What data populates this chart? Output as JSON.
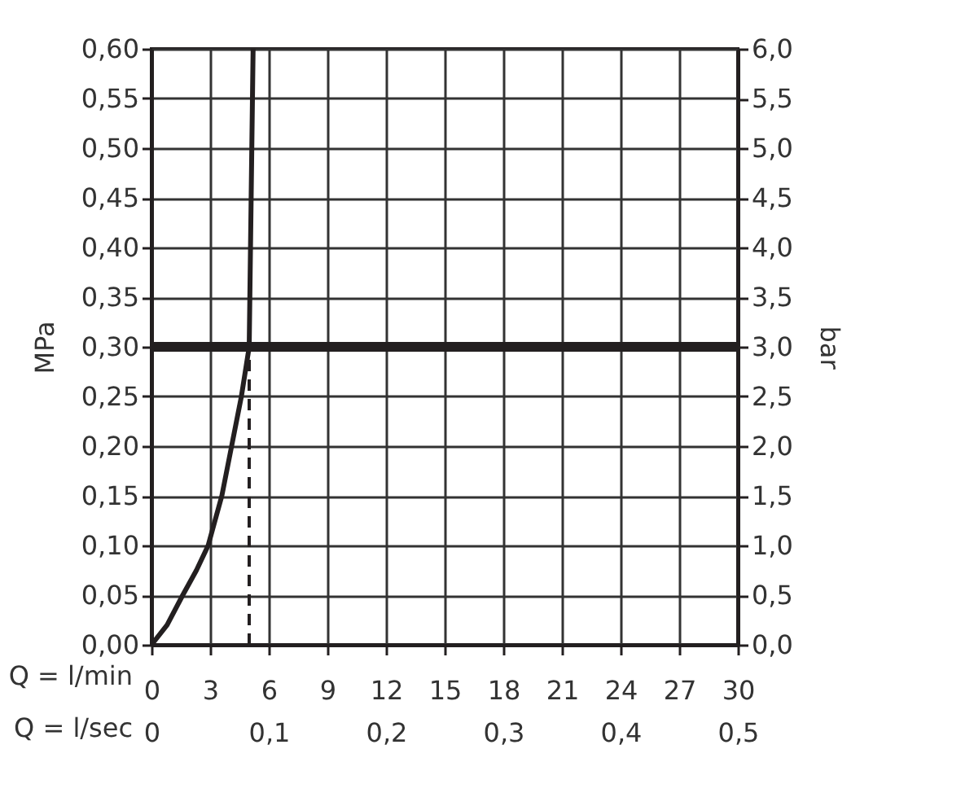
{
  "chart_data": {
    "type": "line",
    "xlabel": "Q = l/min",
    "x2label": "Q = l/sec",
    "ylabel": "MPa",
    "y2label": "bar",
    "xlim": [
      0,
      30
    ],
    "xticks": [
      0,
      3,
      6,
      9,
      12,
      15,
      18,
      21,
      24,
      27,
      30
    ],
    "x2lim": [
      0,
      0.5
    ],
    "x2ticks": [
      {
        "value": 0,
        "label": "0"
      },
      {
        "value": 0.1,
        "label": "0,1"
      },
      {
        "value": 0.2,
        "label": "0,2"
      },
      {
        "value": 0.3,
        "label": "0,3"
      },
      {
        "value": 0.4,
        "label": "0,4"
      },
      {
        "value": 0.5,
        "label": "0,5"
      }
    ],
    "ylim": [
      0,
      0.6
    ],
    "yticks": [
      {
        "value": 0,
        "label": "0,00"
      },
      {
        "value": 0.05,
        "label": "0,05"
      },
      {
        "value": 0.1,
        "label": "0,10"
      },
      {
        "value": 0.15,
        "label": "0,15"
      },
      {
        "value": 0.2,
        "label": "0,20"
      },
      {
        "value": 0.25,
        "label": "0,25"
      },
      {
        "value": 0.3,
        "label": "0,30"
      },
      {
        "value": 0.35,
        "label": "0,35"
      },
      {
        "value": 0.4,
        "label": "0,40"
      },
      {
        "value": 0.45,
        "label": "0,45"
      },
      {
        "value": 0.5,
        "label": "0,50"
      },
      {
        "value": 0.55,
        "label": "0,55"
      },
      {
        "value": 0.6,
        "label": "0,60"
      }
    ],
    "y2lim": [
      0,
      6
    ],
    "y2ticks": [
      {
        "value": 0,
        "label": "0,0"
      },
      {
        "value": 0.5,
        "label": "0,5"
      },
      {
        "value": 1,
        "label": "1,0"
      },
      {
        "value": 1.5,
        "label": "1,5"
      },
      {
        "value": 2,
        "label": "2,0"
      },
      {
        "value": 2.5,
        "label": "2,5"
      },
      {
        "value": 3,
        "label": "3,0"
      },
      {
        "value": 3.5,
        "label": "3,5"
      },
      {
        "value": 4,
        "label": "4,0"
      },
      {
        "value": 4.5,
        "label": "4,5"
      },
      {
        "value": 5,
        "label": "5,0"
      },
      {
        "value": 5.5,
        "label": "5,5"
      },
      {
        "value": 6,
        "label": "6,0"
      }
    ],
    "grid": true,
    "series": [
      {
        "color": "#231f20",
        "line_style": "solid",
        "x": [
          0,
          0.8,
          1.6,
          2.3,
          2.9,
          3.6,
          4.1,
          4.6,
          5,
          5.1,
          5.2
        ],
        "values": [
          0,
          0.02,
          0.05,
          0.075,
          0.1,
          0.15,
          0.2,
          0.25,
          0.3,
          0.45,
          0.6
        ]
      },
      {
        "color": "#231f20",
        "line_style": "dashed",
        "x": [
          5,
          5
        ],
        "values": [
          0,
          0.3
        ]
      }
    ],
    "ref_lines": [
      {
        "axis": "y",
        "value": 0.3,
        "color": "#231f20"
      }
    ]
  }
}
